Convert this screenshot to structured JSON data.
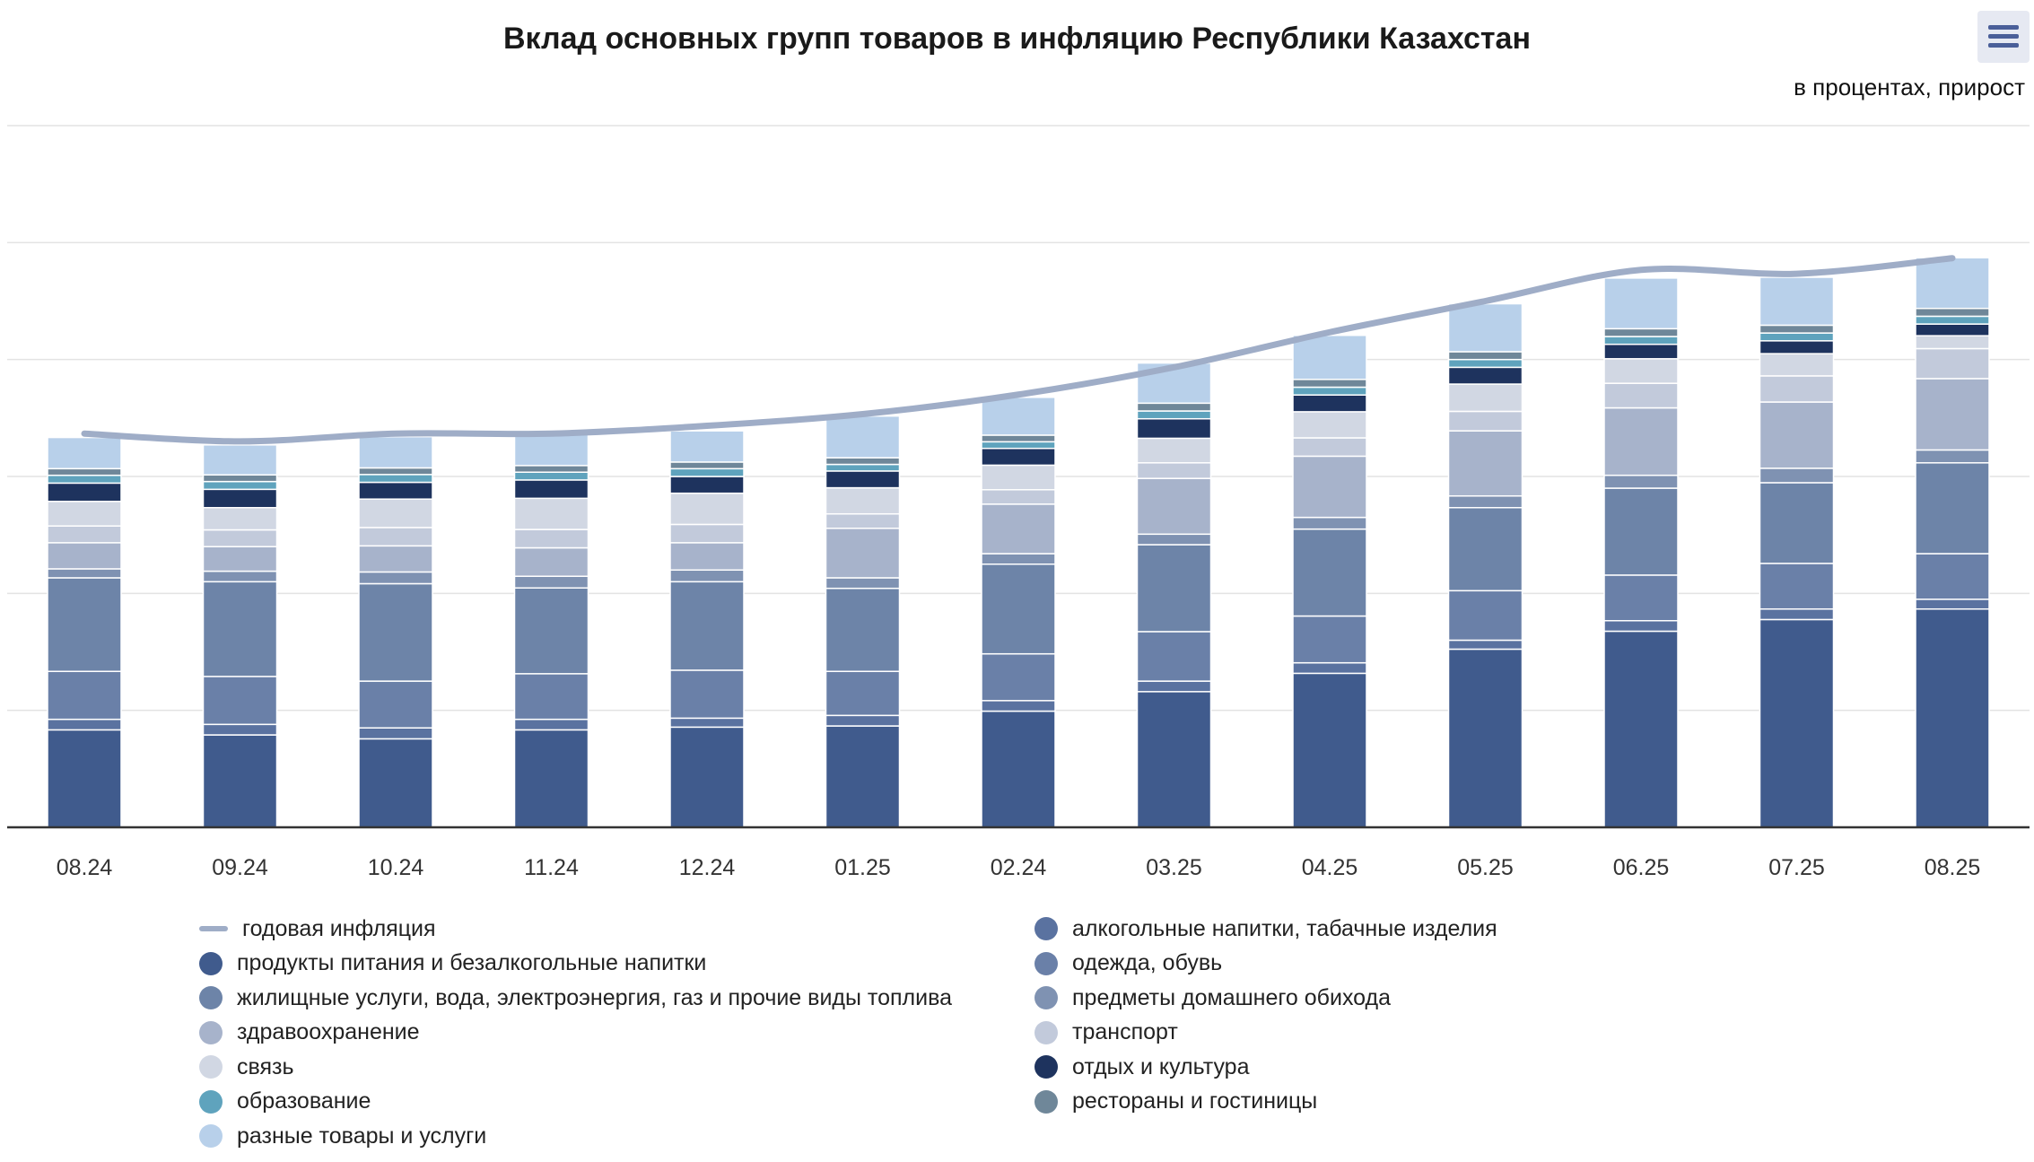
{
  "title": "Вклад основных групп товаров в инфляцию Республики Казахстан",
  "subtitle": "в процентах, прирост",
  "menu_icon": "hamburger-menu-icon",
  "colors": {
    "grid": "#e3e3e3",
    "axis": "#333333",
    "separator": "#ffffff"
  },
  "chart_data": {
    "type": "bar",
    "stacked": true,
    "categories": [
      "08.24",
      "09.24",
      "10.24",
      "11.24",
      "12.24",
      "01.25",
      "02.24",
      "03.25",
      "04.25",
      "05.25",
      "06.25",
      "07.25",
      "08.25"
    ],
    "ylim": [
      0,
      18
    ],
    "y_gridlines": [
      0,
      3,
      6,
      9,
      12,
      15,
      18
    ],
    "series": [
      {
        "name": "продукты питания и безалкогольные напитки",
        "color": "#405b8d",
        "values": [
          2.5,
          2.37,
          2.27,
          2.5,
          2.57,
          2.6,
          2.98,
          3.48,
          3.95,
          4.57,
          5.03,
          5.33,
          5.6
        ]
      },
      {
        "name": "алкогольные напитки, табачные изделия",
        "color": "#5a72a0",
        "values": [
          0.27,
          0.27,
          0.28,
          0.27,
          0.23,
          0.27,
          0.27,
          0.27,
          0.27,
          0.23,
          0.27,
          0.27,
          0.25
        ]
      },
      {
        "name": "одежда, обувь",
        "color": "#6a80a8",
        "values": [
          1.23,
          1.23,
          1.2,
          1.17,
          1.23,
          1.13,
          1.2,
          1.27,
          1.2,
          1.27,
          1.17,
          1.17,
          1.17
        ]
      },
      {
        "name": "жилищные услуги, вода, электроэнергия, газ и прочие виды топлива",
        "color": "#6d84a8",
        "values": [
          2.4,
          2.43,
          2.5,
          2.2,
          2.27,
          2.13,
          2.3,
          2.23,
          2.23,
          2.13,
          2.23,
          2.07,
          2.33
        ]
      },
      {
        "name": "предметы домашнего обихода",
        "color": "#7f92b2",
        "values": [
          0.23,
          0.27,
          0.3,
          0.3,
          0.3,
          0.27,
          0.27,
          0.27,
          0.3,
          0.3,
          0.33,
          0.37,
          0.33
        ]
      },
      {
        "name": "здравоохранение",
        "color": "#a7b3cb",
        "values": [
          0.67,
          0.63,
          0.67,
          0.73,
          0.7,
          1.27,
          1.27,
          1.43,
          1.57,
          1.67,
          1.73,
          1.7,
          1.83
        ]
      },
      {
        "name": "транспорт",
        "color": "#c2cadb",
        "values": [
          0.43,
          0.43,
          0.47,
          0.47,
          0.47,
          0.37,
          0.37,
          0.4,
          0.47,
          0.5,
          0.63,
          0.67,
          0.77
        ]
      },
      {
        "name": "связь",
        "color": "#d1d7e3",
        "values": [
          0.63,
          0.57,
          0.73,
          0.8,
          0.8,
          0.67,
          0.63,
          0.63,
          0.67,
          0.7,
          0.63,
          0.57,
          0.33
        ]
      },
      {
        "name": "отдых и культура",
        "color": "#1e335e",
        "values": [
          0.47,
          0.47,
          0.43,
          0.47,
          0.43,
          0.43,
          0.43,
          0.5,
          0.43,
          0.43,
          0.37,
          0.33,
          0.3
        ]
      },
      {
        "name": "образование",
        "color": "#5fa3bd",
        "values": [
          0.2,
          0.2,
          0.2,
          0.2,
          0.2,
          0.17,
          0.17,
          0.2,
          0.2,
          0.2,
          0.2,
          0.2,
          0.2
        ]
      },
      {
        "name": "рестораны и гостиницы",
        "color": "#6f8799",
        "values": [
          0.17,
          0.17,
          0.17,
          0.17,
          0.17,
          0.17,
          0.17,
          0.2,
          0.2,
          0.2,
          0.2,
          0.2,
          0.2
        ]
      },
      {
        "name": "разные товары и услуги",
        "color": "#b8d0ea",
        "values": [
          0.8,
          0.77,
          0.8,
          0.8,
          0.8,
          1.07,
          0.97,
          1.03,
          1.13,
          1.23,
          1.3,
          1.23,
          1.3
        ]
      },
      {
        "name": "годовая инфляция",
        "type": "line",
        "color": "#9fadc7",
        "values": [
          10.1,
          9.9,
          10.1,
          10.1,
          10.3,
          10.6,
          11.1,
          11.8,
          12.7,
          13.5,
          14.3,
          14.2,
          14.6
        ]
      }
    ],
    "legend": {
      "placement": "bottom",
      "left_column": [
        "годовая инфляция",
        "продукты питания и безалкогольные напитки",
        "жилищные услуги, вода, электроэнергия, газ и прочие виды топлива",
        "здравоохранение",
        "связь",
        "образование",
        "разные товары и услуги"
      ],
      "right_column": [
        "алкогольные напитки, табачные изделия",
        "одежда, обувь",
        "предметы домашнего обихода",
        "транспорт",
        "отдых и культура",
        "рестораны и гостиницы"
      ]
    },
    "grid": true
  }
}
